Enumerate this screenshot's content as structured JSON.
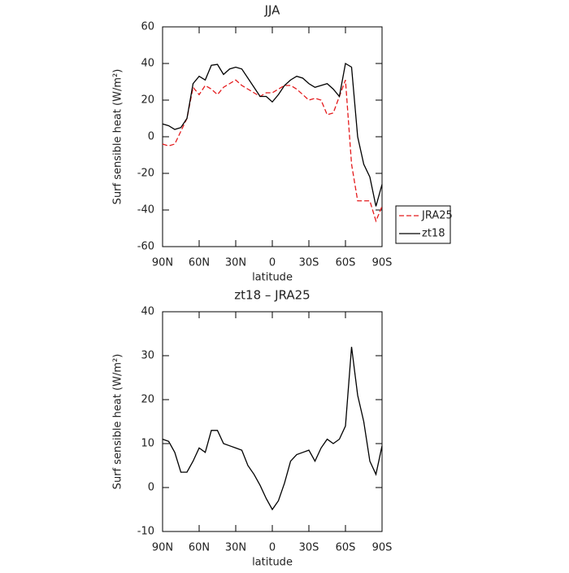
{
  "chart_data": [
    {
      "type": "line",
      "title": "JJA",
      "x_label": "latitude",
      "y_label": "Surf sensible heat (W/m²)",
      "x": [
        90,
        85,
        80,
        75,
        70,
        65,
        60,
        55,
        50,
        45,
        40,
        35,
        30,
        25,
        20,
        15,
        10,
        5,
        0,
        -5,
        -10,
        -15,
        -20,
        -25,
        -30,
        -35,
        -40,
        -45,
        -50,
        -55,
        -60,
        -65,
        -70,
        -75,
        -80,
        -85,
        -90
      ],
      "series": [
        {
          "name": "JRA25",
          "color": "#e41a1c",
          "dash": true,
          "values": [
            -4,
            -5,
            -4,
            3,
            10,
            27,
            23,
            28,
            26,
            23,
            27,
            29,
            31,
            28,
            26,
            24,
            22,
            24,
            24,
            26,
            28,
            28,
            26,
            23,
            20,
            21,
            20,
            12,
            13,
            22,
            31,
            -15,
            -35,
            -35,
            -35,
            -46,
            -38
          ]
        },
        {
          "name": "zt18",
          "color": "#000000",
          "dash": false,
          "values": [
            7,
            6,
            4,
            5,
            10,
            29,
            33,
            31,
            39,
            39.5,
            34,
            37,
            38,
            37,
            32,
            27,
            22,
            22,
            19,
            23,
            28,
            31,
            33,
            32,
            29,
            27,
            28,
            29,
            26,
            22,
            40,
            38,
            0,
            -15,
            -22,
            -38,
            -26
          ]
        }
      ],
      "xlim": [
        90,
        -90
      ],
      "xticks": [
        {
          "value": 90,
          "label": "90N"
        },
        {
          "value": 60,
          "label": "60N"
        },
        {
          "value": 30,
          "label": "30N"
        },
        0,
        {
          "value": -30,
          "label": "30S"
        },
        {
          "value": -60,
          "label": "60S"
        },
        {
          "value": -90,
          "label": "90S"
        }
      ],
      "ylim": [
        -60,
        60
      ],
      "yticks": [
        -60,
        -40,
        -20,
        0,
        20,
        40,
        60
      ],
      "legend": "right"
    },
    {
      "type": "line",
      "title": "zt18 – JRA25",
      "x_label": "latitude",
      "y_label": "Surf sensible heat (W/m²)",
      "x": [
        90,
        85,
        80,
        75,
        70,
        65,
        60,
        55,
        50,
        45,
        40,
        35,
        30,
        25,
        20,
        15,
        10,
        5,
        0,
        -5,
        -10,
        -15,
        -20,
        -25,
        -30,
        -35,
        -40,
        -45,
        -50,
        -55,
        -60,
        -65,
        -70,
        -75,
        -80,
        -85,
        -90
      ],
      "series": [
        {
          "color": "#000000",
          "dash": false,
          "values": [
            11,
            10.5,
            8,
            3.5,
            3.5,
            6,
            9,
            8,
            13,
            13,
            10,
            9.5,
            9,
            8.5,
            5,
            3,
            0.5,
            -2.5,
            -5,
            -3,
            1,
            6,
            7.5,
            8,
            8.5,
            6,
            9,
            11,
            10,
            11,
            14,
            32,
            21,
            15,
            6,
            3,
            9.5
          ]
        }
      ],
      "xlim": [
        90,
        -90
      ],
      "xticks": [
        {
          "value": 90,
          "label": "90N"
        },
        {
          "value": 60,
          "label": "60N"
        },
        {
          "value": 30,
          "label": "30N"
        },
        0,
        {
          "value": -30,
          "label": "30S"
        },
        {
          "value": -60,
          "label": "60S"
        },
        {
          "value": -90,
          "label": "90S"
        }
      ],
      "ylim": [
        -10,
        40
      ],
      "yticks": [
        -10,
        0,
        10,
        20,
        30,
        40
      ]
    }
  ]
}
